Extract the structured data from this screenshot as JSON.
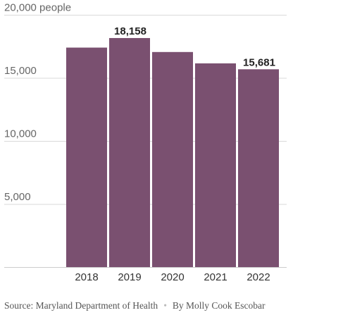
{
  "chart_data": {
    "type": "bar",
    "categories": [
      "2018",
      "2019",
      "2020",
      "2021",
      "2022"
    ],
    "values": [
      17400,
      18158,
      17050,
      16150,
      15681
    ],
    "data_labels": [
      "",
      "18,158",
      "",
      "",
      "15,681"
    ],
    "y_ticks": [
      {
        "value": 20000,
        "label": "20,000 people"
      },
      {
        "value": 15000,
        "label": "15,000"
      },
      {
        "value": 10000,
        "label": "10,000"
      },
      {
        "value": 5000,
        "label": "5,000"
      }
    ],
    "ylim": [
      0,
      20000
    ],
    "grid": true,
    "bar_color": "#7a5070",
    "title": "",
    "xlabel": "",
    "ylabel": ""
  },
  "footer": {
    "source": "Source: Maryland Department of Health",
    "separator": "•",
    "byline": "By Molly Cook Escobar"
  }
}
